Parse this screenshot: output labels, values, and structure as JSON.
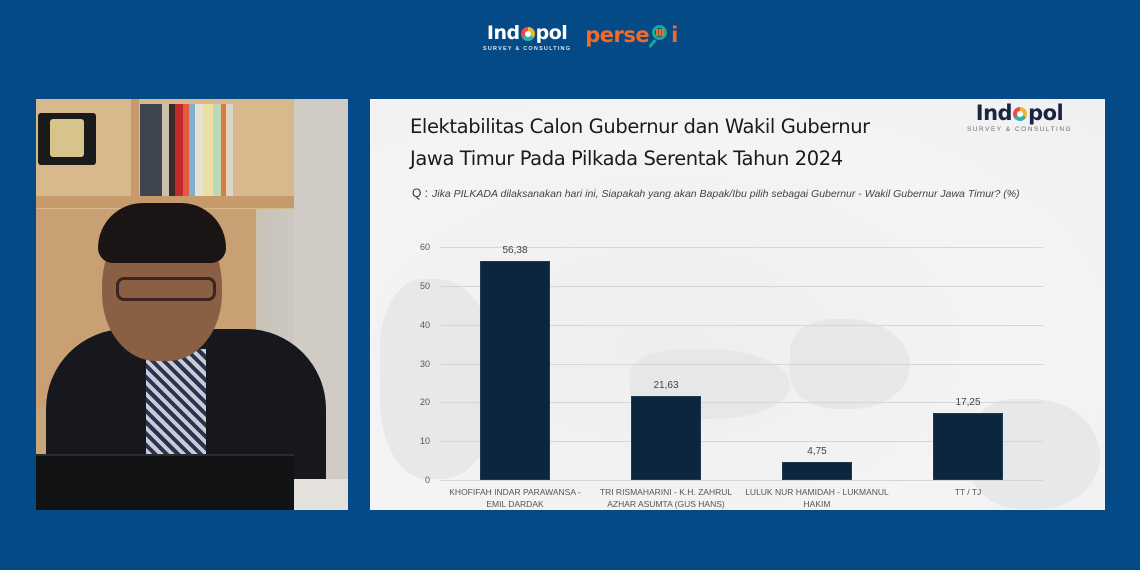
{
  "header": {
    "logos": [
      {
        "name": "Indopol",
        "word_left": "Ind",
        "word_right": "pol",
        "tagline": "SURVEY & CONSULTING"
      },
      {
        "name": "persepsi",
        "word_left": "perse",
        "word_right": "i"
      }
    ]
  },
  "video": {
    "description": "Presenter on webcam in office with bookshelf"
  },
  "slide": {
    "title_line1": "Elektabilitas Calon Gubernur dan Wakil Gubernur",
    "title_line2": "Jawa Timur Pada Pilkada Serentak Tahun 2024",
    "question_prefix": "Q :",
    "question": "Jika PILKADA dilaksanakan hari ini, Siapakah yang akan Bapak/Ibu pilih sebagai Gubernur - Wakil Gubernur Jawa Timur? (%)",
    "logo": {
      "word_left": "Ind",
      "word_right": "pol",
      "tagline": "SURVEY & CONSULTING"
    }
  },
  "chart_data": {
    "type": "bar",
    "title": "Elektabilitas Calon Gubernur dan Wakil Gubernur Jawa Timur Pada Pilkada Serentak Tahun 2024",
    "subtitle": "Q : Jika PILKADA dilaksanakan hari ini, Siapakah yang akan Bapak/Ibu pilih sebagai Gubernur - Wakil Gubernur Jawa Timur? (%)",
    "categories": [
      "KHOFIFAH INDAR PARAWANSA - EMIL DARDAK",
      "TRI RISMAHARINI - K.H. ZAHRUL AZHAR ASUMTA (GUS HANS)",
      "LULUK NUR HAMIDAH - LUKMANUL HAKIM",
      "TT / TJ"
    ],
    "category_lines": [
      [
        "KHOFIFAH INDAR PARAWANSA -",
        "EMIL DARDAK"
      ],
      [
        "TRI RISMAHARINI - K.H. ZAHRUL",
        "AZHAR ASUMTA (GUS HANS)"
      ],
      [
        "LULUK NUR HAMIDAH - LUKMANUL",
        "HAKIM"
      ],
      [
        "TT / TJ",
        ""
      ]
    ],
    "values": [
      56.38,
      21.63,
      4.75,
      17.25
    ],
    "value_labels": [
      "56,38",
      "21,63",
      "4,75",
      "17,25"
    ],
    "xlabel": "",
    "ylabel": "",
    "ylim": [
      0,
      60
    ],
    "yticks": [
      0,
      10,
      20,
      30,
      40,
      50,
      60
    ],
    "grid": true,
    "legend": "none",
    "bar_color": "#0c2640"
  }
}
